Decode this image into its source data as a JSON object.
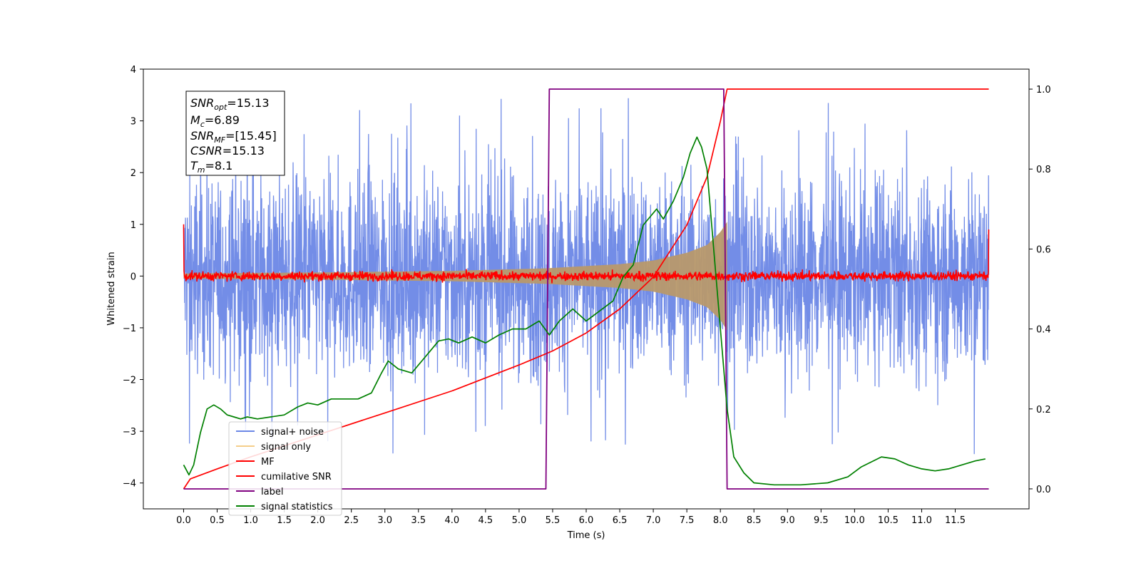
{
  "chart_data": {
    "type": "line",
    "xlabel": "Time (s)",
    "ylabel": "Whitened strain",
    "ylabel_right": "",
    "xlim": [
      -0.6,
      12.6
    ],
    "ylim": [
      -4.5,
      4.0
    ],
    "ylim_right": [
      -0.05,
      1.05
    ],
    "x_ticks": [
      0.0,
      0.5,
      1.0,
      1.5,
      2.0,
      2.5,
      3.0,
      3.5,
      4.0,
      4.5,
      5.0,
      5.5,
      6.0,
      6.5,
      7.0,
      7.5,
      8.0,
      8.5,
      9.0,
      9.5,
      10.0,
      10.5,
      11.0,
      11.5
    ],
    "x_tick_labels": [
      "0.0",
      "0.5",
      "1.0",
      "1.5",
      "2.0",
      "2.5",
      "3.0",
      "3.5",
      "4.0",
      "4.5",
      "5.0",
      "5.5",
      "6.0",
      "6.5",
      "7.0",
      "7.5",
      "8.0",
      "8.5",
      "9.0",
      "9.5",
      "10.0",
      "10.5",
      "11.0",
      "11.5"
    ],
    "y_ticks": [
      4,
      3,
      2,
      1,
      0,
      -1,
      -2,
      -3,
      -4
    ],
    "y_tick_labels": [
      "4",
      "3",
      "2",
      "1",
      "0",
      "−1",
      "−2",
      "−3",
      "−4"
    ],
    "y_right_ticks": [
      1.0,
      0.8,
      0.6,
      0.4,
      0.2,
      0.0
    ],
    "y_right_tick_labels": [
      "1.0",
      "0.8",
      "0.6",
      "0.4",
      "0.2",
      "0.0"
    ],
    "grid": false,
    "legend_position": "lower-left",
    "stats_box": {
      "snr_opt": {
        "sym": "SNR",
        "sub": "opt",
        "value": "=15.13"
      },
      "mc": {
        "sym": "M",
        "sub": "c",
        "value": "=6.89"
      },
      "snr_mf": {
        "sym": "SNR",
        "sub": "MF",
        "value": "=[15.45]"
      },
      "csnr": {
        "sym": "CSNR",
        "sub": "",
        "value": "=15.13"
      },
      "tm": {
        "sym": "T",
        "sub": "m",
        "value": "=8.1"
      }
    },
    "series": [
      {
        "name": "signal+ noise",
        "color": "#6B87E6",
        "axis": "left",
        "x_range": [
          0.0,
          12.0
        ],
        "description_values": {
          "typical_abs": 1.0,
          "max": 3.6,
          "min": -4.15
        }
      },
      {
        "name": "signal only",
        "color": "#F5B547",
        "axis": "left",
        "x_range": [
          0.0,
          8.1
        ],
        "envelope": {
          "x": [
            0.0,
            2.0,
            4.0,
            5.4,
            6.5,
            7.0,
            7.5,
            7.8,
            8.0,
            8.1
          ],
          "amp": [
            0.05,
            0.07,
            0.1,
            0.15,
            0.23,
            0.3,
            0.45,
            0.6,
            0.85,
            1.05
          ]
        }
      },
      {
        "name": "MF",
        "color": "#FF0000",
        "axis": "left",
        "x_range": [
          0.0,
          12.0
        ],
        "description_values": {
          "typical_abs": 0.07,
          "start": 1.0,
          "end": 0.9
        }
      },
      {
        "name": "cumilative SNR",
        "color": "#FF0000",
        "axis": "right",
        "x": [
          0.0,
          0.1,
          0.5,
          1.0,
          2.0,
          3.0,
          4.0,
          5.0,
          5.5,
          6.0,
          6.5,
          7.0,
          7.5,
          7.8,
          8.0,
          8.1,
          12.0
        ],
        "values": [
          0.0,
          0.025,
          0.05,
          0.08,
          0.135,
          0.19,
          0.245,
          0.31,
          0.345,
          0.39,
          0.45,
          0.53,
          0.66,
          0.78,
          0.92,
          1.0,
          1.0
        ]
      },
      {
        "name": "label",
        "color": "#800080",
        "axis": "right",
        "x": [
          0.0,
          5.4,
          5.45,
          8.05,
          8.1,
          12.0
        ],
        "values": [
          0.0,
          0.0,
          1.0,
          1.0,
          0.0,
          0.0
        ]
      },
      {
        "name": "signal statistics",
        "color": "#008000",
        "axis": "right",
        "x": [
          0.0,
          0.08,
          0.15,
          0.25,
          0.35,
          0.45,
          0.55,
          0.65,
          0.75,
          0.85,
          0.95,
          1.1,
          1.3,
          1.5,
          1.7,
          1.85,
          2.0,
          2.2,
          2.4,
          2.6,
          2.8,
          2.95,
          3.05,
          3.2,
          3.4,
          3.6,
          3.8,
          3.95,
          4.1,
          4.3,
          4.5,
          4.7,
          4.9,
          5.1,
          5.3,
          5.45,
          5.6,
          5.8,
          6.0,
          6.2,
          6.4,
          6.55,
          6.7,
          6.85,
          6.95,
          7.05,
          7.15,
          7.3,
          7.45,
          7.55,
          7.65,
          7.72,
          7.8,
          7.9,
          8.0,
          8.1,
          8.2,
          8.35,
          8.5,
          8.8,
          9.2,
          9.6,
          9.9,
          10.1,
          10.4,
          10.6,
          10.8,
          11.0,
          11.2,
          11.4,
          11.6,
          11.8,
          11.95
        ],
        "values": [
          0.06,
          0.035,
          0.06,
          0.14,
          0.2,
          0.21,
          0.2,
          0.185,
          0.18,
          0.175,
          0.18,
          0.175,
          0.18,
          0.185,
          0.205,
          0.215,
          0.21,
          0.225,
          0.225,
          0.225,
          0.24,
          0.29,
          0.32,
          0.3,
          0.29,
          0.33,
          0.37,
          0.375,
          0.365,
          0.38,
          0.365,
          0.385,
          0.4,
          0.4,
          0.42,
          0.385,
          0.42,
          0.45,
          0.42,
          0.445,
          0.47,
          0.53,
          0.56,
          0.66,
          0.68,
          0.7,
          0.675,
          0.72,
          0.78,
          0.84,
          0.88,
          0.855,
          0.8,
          0.6,
          0.4,
          0.2,
          0.08,
          0.04,
          0.015,
          0.01,
          0.01,
          0.015,
          0.03,
          0.055,
          0.08,
          0.075,
          0.06,
          0.05,
          0.045,
          0.05,
          0.06,
          0.07,
          0.075
        ]
      }
    ]
  }
}
